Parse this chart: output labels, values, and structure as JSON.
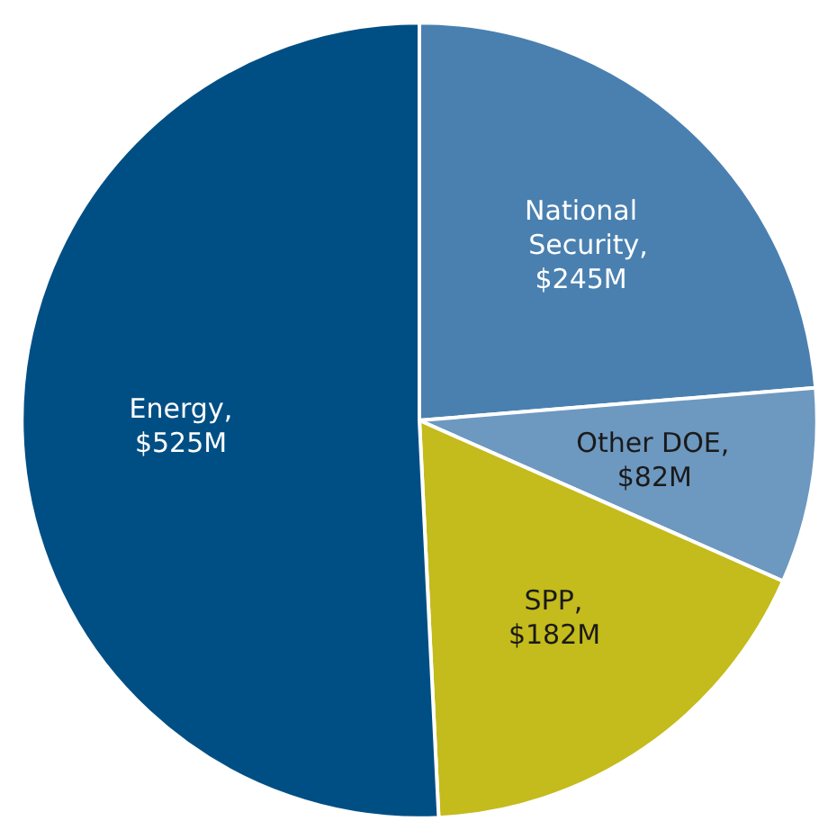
{
  "chart_data": {
    "type": "pie",
    "categories": [
      "National Security",
      "Other DOE",
      "SPP",
      "Energy"
    ],
    "values": [
      245,
      82,
      182,
      525
    ],
    "value_labels": [
      "$245M",
      "$82M",
      "$182M",
      "$525M"
    ],
    "colors": [
      "#4a80b0",
      "#6d98c0",
      "#c4bb1c",
      "#004f84"
    ],
    "annotations": [
      ",",
      ",",
      ",",
      ","
    ]
  }
}
